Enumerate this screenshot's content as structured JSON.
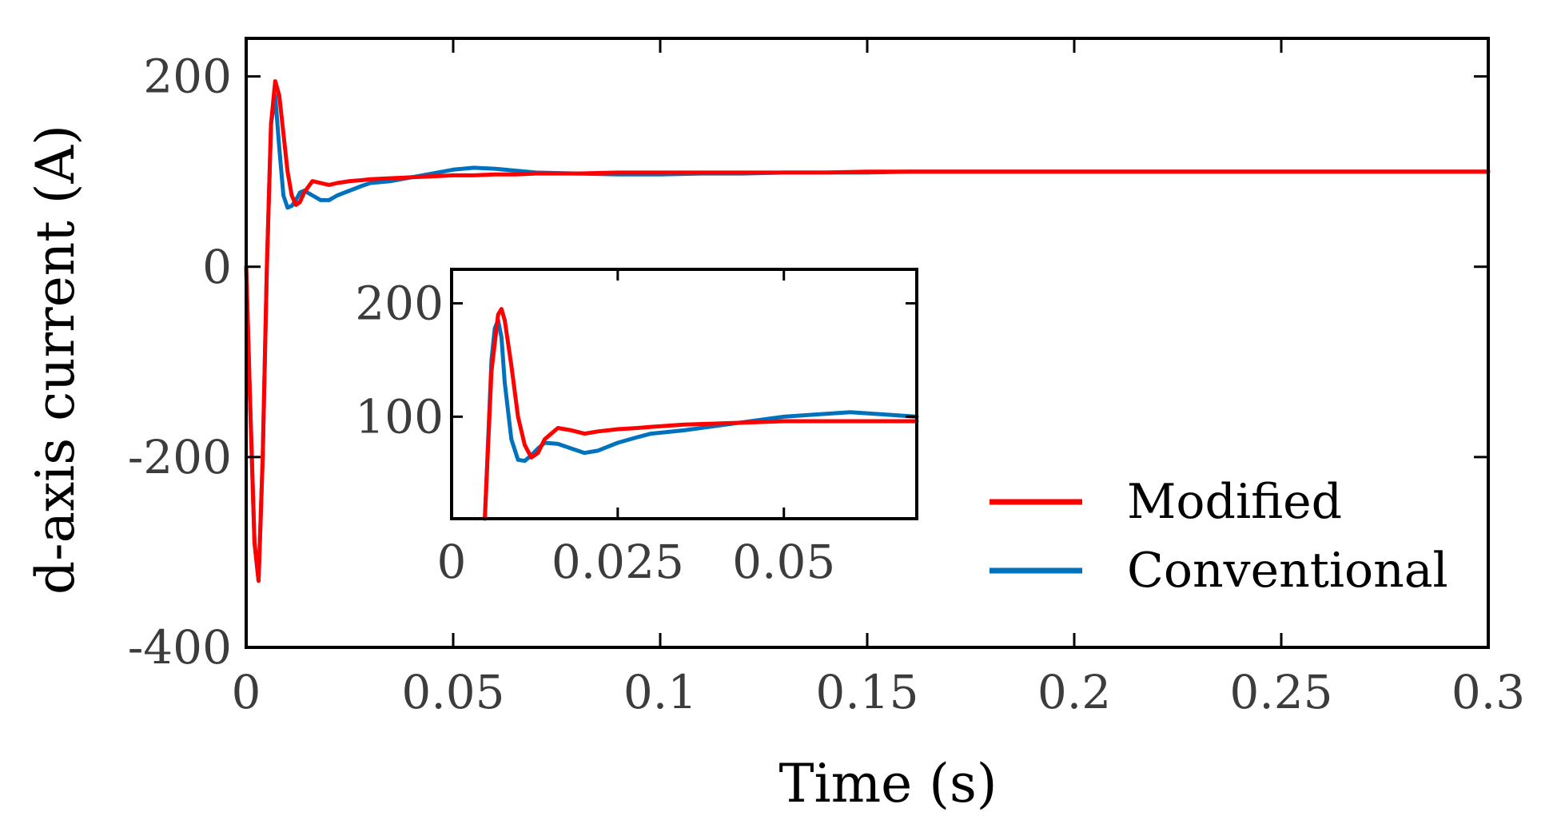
{
  "chart_data": [
    {
      "id": "main",
      "type": "line",
      "title": "",
      "xlabel": "Time (s)",
      "ylabel": "d-axis current (A)",
      "xlim": [
        0,
        0.3
      ],
      "ylim": [
        -400,
        240
      ],
      "xticks": [
        0,
        0.05,
        0.1,
        0.15,
        0.2,
        0.25,
        0.3
      ],
      "xtick_labels": [
        "0",
        "0.05",
        "0.1",
        "0.15",
        "0.2",
        "0.25",
        "0.3"
      ],
      "yticks": [
        -400,
        -200,
        0,
        200
      ],
      "ytick_labels": [
        "-400",
        "-200",
        "0",
        "200"
      ],
      "grid": false,
      "legend_position": "bottom-right",
      "series": [
        {
          "name": "Conventional",
          "color": "#0072BD",
          "x": [
            0,
            0.001,
            0.002,
            0.003,
            0.004,
            0.005,
            0.006,
            0.007,
            0.008,
            0.009,
            0.01,
            0.011,
            0.012,
            0.013,
            0.014,
            0.016,
            0.018,
            0.02,
            0.022,
            0.025,
            0.028,
            0.03,
            0.035,
            0.04,
            0.045,
            0.05,
            0.055,
            0.06,
            0.065,
            0.07,
            0.08,
            0.09,
            0.1,
            0.11,
            0.12,
            0.13,
            0.14,
            0.15,
            0.16,
            0.17,
            0.18,
            0.19,
            0.2,
            0.21,
            0.22,
            0.23,
            0.24,
            0.25,
            0.26,
            0.27,
            0.28,
            0.29,
            0.3
          ],
          "y": [
            0,
            -150,
            -290,
            -330,
            -200,
            0,
            150,
            180,
            125,
            75,
            62,
            64,
            70,
            78,
            80,
            75,
            70,
            70,
            75,
            80,
            85,
            88,
            90,
            94,
            98,
            102,
            104,
            103,
            101,
            99,
            98,
            97,
            97,
            98,
            98,
            99,
            99,
            99,
            100,
            100,
            100,
            100,
            100,
            100,
            100,
            100,
            100,
            100,
            100,
            100,
            100,
            100,
            100
          ]
        },
        {
          "name": "Modified",
          "color": "#FF0000",
          "x": [
            0,
            0.001,
            0.002,
            0.003,
            0.004,
            0.005,
            0.006,
            0.007,
            0.008,
            0.009,
            0.01,
            0.011,
            0.012,
            0.013,
            0.014,
            0.016,
            0.018,
            0.02,
            0.022,
            0.025,
            0.028,
            0.03,
            0.035,
            0.04,
            0.045,
            0.05,
            0.055,
            0.06,
            0.065,
            0.07,
            0.08,
            0.09,
            0.1,
            0.11,
            0.12,
            0.13,
            0.14,
            0.15,
            0.16,
            0.17,
            0.18,
            0.19,
            0.2,
            0.21,
            0.22,
            0.23,
            0.24,
            0.25,
            0.26,
            0.27,
            0.28,
            0.29,
            0.3
          ],
          "y": [
            0,
            -150,
            -290,
            -330,
            -200,
            0,
            150,
            195,
            180,
            140,
            100,
            75,
            65,
            68,
            78,
            90,
            88,
            86,
            88,
            90,
            91,
            92,
            93,
            94,
            95,
            96,
            96,
            97,
            97,
            98,
            98,
            99,
            99,
            99,
            99,
            99,
            99,
            100,
            100,
            100,
            100,
            100,
            100,
            100,
            100,
            100,
            100,
            100,
            100,
            100,
            100,
            100,
            100
          ]
        }
      ],
      "legend": [
        {
          "label": "Modified",
          "color": "#FF0000"
        },
        {
          "label": "Conventional",
          "color": "#0072BD"
        }
      ]
    },
    {
      "id": "inset",
      "type": "line",
      "title": "",
      "xlabel": "",
      "ylabel": "",
      "xlim": [
        0,
        0.07
      ],
      "ylim": [
        10,
        230
      ],
      "xticks": [
        0,
        0.025,
        0.05
      ],
      "xtick_labels": [
        "0",
        "0.025",
        "0.05"
      ],
      "yticks": [
        100,
        200
      ],
      "ytick_labels": [
        "100",
        "200"
      ],
      "grid": false,
      "series": [
        {
          "name": "Conventional",
          "color": "#0072BD",
          "x": [
            0.005,
            0.006,
            0.0065,
            0.007,
            0.0075,
            0.008,
            0.009,
            0.01,
            0.011,
            0.012,
            0.013,
            0.014,
            0.016,
            0.018,
            0.02,
            0.022,
            0.025,
            0.028,
            0.03,
            0.035,
            0.04,
            0.045,
            0.05,
            0.055,
            0.06,
            0.065,
            0.07
          ],
          "y": [
            10,
            150,
            178,
            185,
            170,
            130,
            80,
            62,
            61,
            66,
            72,
            77,
            76,
            72,
            68,
            70,
            77,
            82,
            85,
            88,
            92,
            96,
            100,
            102,
            104,
            102,
            100
          ]
        },
        {
          "name": "Modified",
          "color": "#FF0000",
          "x": [
            0.005,
            0.006,
            0.007,
            0.0075,
            0.008,
            0.009,
            0.01,
            0.011,
            0.012,
            0.013,
            0.014,
            0.016,
            0.018,
            0.02,
            0.022,
            0.025,
            0.028,
            0.03,
            0.035,
            0.04,
            0.045,
            0.05,
            0.055,
            0.06,
            0.065,
            0.07
          ],
          "y": [
            10,
            140,
            190,
            195,
            185,
            145,
            100,
            75,
            64,
            68,
            80,
            90,
            88,
            85,
            87,
            89,
            90,
            91,
            93,
            94,
            95,
            96,
            96,
            96,
            96,
            96
          ]
        }
      ]
    }
  ]
}
